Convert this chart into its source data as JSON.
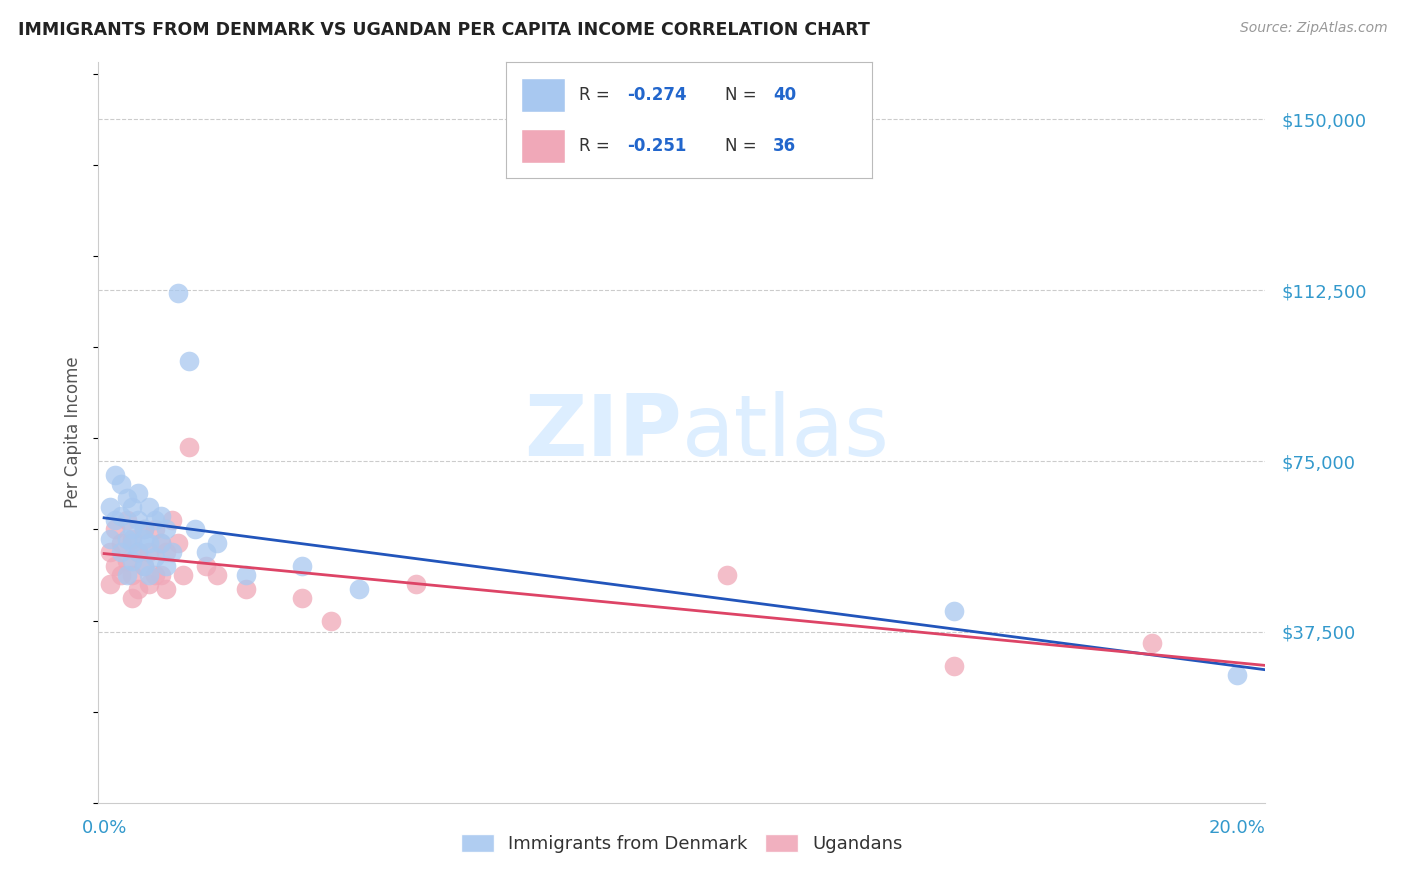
{
  "title": "IMMIGRANTS FROM DENMARK VS UGANDAN PER CAPITA INCOME CORRELATION CHART",
  "source": "Source: ZipAtlas.com",
  "ylabel": "Per Capita Income",
  "legend_label1": "Immigrants from Denmark",
  "legend_label2": "Ugandans",
  "blue_color": "#a8c8f0",
  "pink_color": "#f0a8b8",
  "blue_line_color": "#2255bb",
  "pink_line_color": "#dd4466",
  "ytick_color": "#3399cc",
  "xtick_color": "#3399cc",
  "watermark_color": "#ddeeff",
  "ylim": [
    0,
    162500
  ],
  "xlim": [
    0.0,
    0.205
  ],
  "blue_x": [
    0.001,
    0.001,
    0.002,
    0.002,
    0.003,
    0.003,
    0.003,
    0.004,
    0.004,
    0.004,
    0.005,
    0.005,
    0.005,
    0.005,
    0.006,
    0.006,
    0.006,
    0.007,
    0.007,
    0.007,
    0.008,
    0.008,
    0.008,
    0.009,
    0.009,
    0.01,
    0.01,
    0.011,
    0.011,
    0.012,
    0.013,
    0.015,
    0.016,
    0.018,
    0.02,
    0.025,
    0.035,
    0.045,
    0.15,
    0.2
  ],
  "blue_y": [
    65000,
    58000,
    72000,
    62000,
    70000,
    63000,
    55000,
    67000,
    58000,
    50000,
    60000,
    57000,
    65000,
    53000,
    62000,
    55000,
    68000,
    60000,
    52000,
    58000,
    65000,
    57000,
    50000,
    62000,
    54000,
    57000,
    63000,
    60000,
    52000,
    55000,
    112000,
    97000,
    60000,
    55000,
    57000,
    50000,
    52000,
    47000,
    42000,
    28000
  ],
  "pink_x": [
    0.001,
    0.001,
    0.002,
    0.002,
    0.003,
    0.003,
    0.004,
    0.004,
    0.005,
    0.005,
    0.005,
    0.006,
    0.006,
    0.007,
    0.007,
    0.008,
    0.008,
    0.009,
    0.009,
    0.01,
    0.01,
    0.011,
    0.011,
    0.012,
    0.013,
    0.014,
    0.015,
    0.018,
    0.02,
    0.025,
    0.035,
    0.04,
    0.055,
    0.11,
    0.15,
    0.185
  ],
  "pink_y": [
    55000,
    48000,
    60000,
    52000,
    57000,
    50000,
    62000,
    53000,
    58000,
    50000,
    45000,
    55000,
    47000,
    60000,
    52000,
    55000,
    48000,
    60000,
    50000,
    57000,
    50000,
    55000,
    47000,
    62000,
    57000,
    50000,
    78000,
    52000,
    50000,
    47000,
    45000,
    40000,
    48000,
    50000,
    30000,
    35000
  ]
}
